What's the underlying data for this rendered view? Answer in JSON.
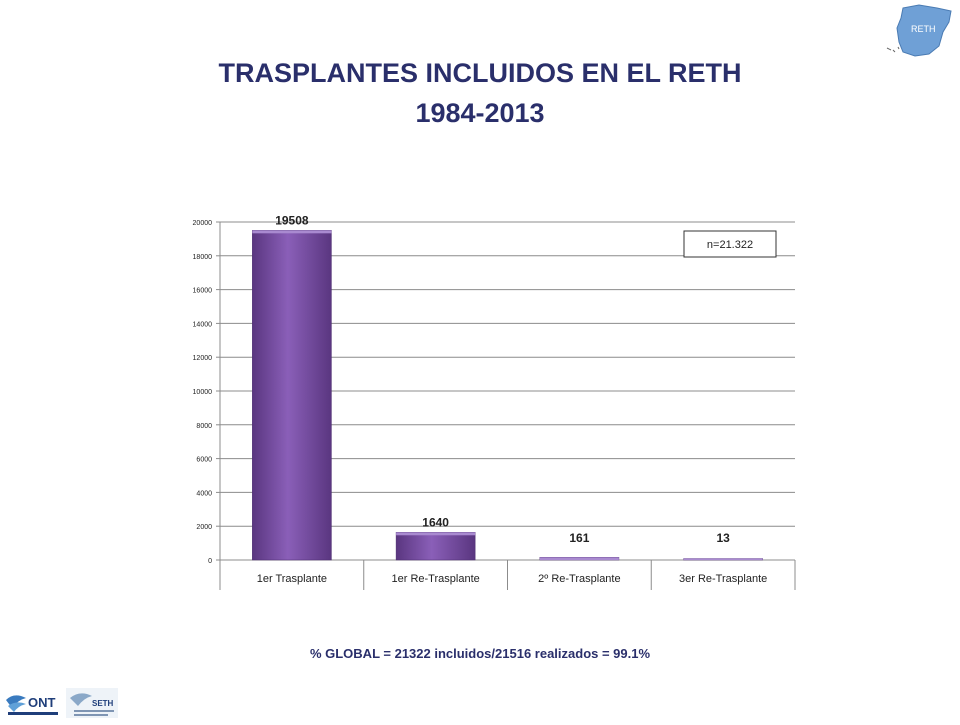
{
  "page": {
    "title": "TRASPLANTES INCLUIDOS EN EL RETH",
    "subtitle": "1984-2013",
    "footer": "% GLOBAL = 21322 incluidos/21516 realizados = 99.1%",
    "logo_map_text": "RETH",
    "logo_ont_text": "ONT",
    "logo_seth_text": "SETH"
  },
  "colors": {
    "title": "#2a2f6b",
    "bar": "#7a4fa6",
    "bar_light": "#9b73c7",
    "bar_dark": "#5a3680",
    "map": "#6fa0d6"
  },
  "chart_data": {
    "type": "bar",
    "categories": [
      "1er Trasplante",
      "1er Re-Trasplante",
      "2º Re-Trasplante",
      "3er Re-Trasplante"
    ],
    "values": [
      19508,
      1640,
      161,
      13
    ],
    "data_labels": [
      "19508",
      "1640",
      "161",
      "13"
    ],
    "ylim": [
      0,
      20000
    ],
    "yticks": [
      0,
      2000,
      4000,
      6000,
      8000,
      10000,
      12000,
      14000,
      16000,
      18000,
      20000
    ],
    "grid": true,
    "annotation": "n=21.322"
  }
}
